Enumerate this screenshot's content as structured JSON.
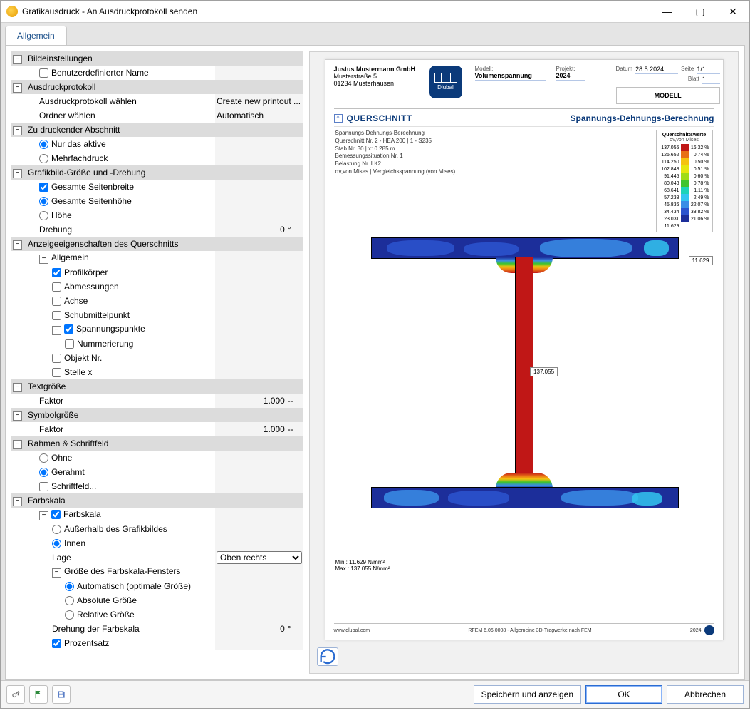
{
  "window": {
    "title": "Grafikausdruck - An Ausdruckprotokoll senden",
    "min": "—",
    "max": "▢",
    "close": "✕"
  },
  "tab": {
    "label": "Allgemein"
  },
  "settings": {
    "bild": {
      "header": "Bildeinstellungen",
      "custom_name_label": "Benutzerdefinierter Name",
      "custom_name_checked": false
    },
    "protokoll": {
      "header": "Ausdruckprotokoll",
      "choose_label": "Ausdruckprotokoll wählen",
      "choose_value": "Create new printout ...",
      "folder_label": "Ordner wählen",
      "folder_value": "Automatisch"
    },
    "section_print": {
      "header": "Zu druckender Abschnitt",
      "only_active": "Nur das aktive",
      "multi": "Mehrfachdruck",
      "selected": "only_active"
    },
    "size_rot": {
      "header": "Grafikbild-Größe und -Drehung",
      "full_width": "Gesamte Seitenbreite",
      "full_height": "Gesamte Seitenhöhe",
      "height": "Höhe",
      "rotation_label": "Drehung",
      "rotation_value": "0",
      "rotation_unit": "°",
      "full_width_checked": true,
      "selected_height": "full_height"
    },
    "qs_props": {
      "header": "Anzeigeeigenschaften des Querschnitts",
      "allgemein": "Allgemein",
      "profil": "Profilkörper",
      "abm": "Abmessungen",
      "achse": "Achse",
      "schub": "Schubmittelpunkt",
      "span": "Spannungspunkte",
      "num": "Nummerierung",
      "obj": "Objekt Nr.",
      "stelle": "Stelle x",
      "profil_checked": true,
      "span_checked": true
    },
    "textsize": {
      "header": "Textgröße",
      "factor_label": "Faktor",
      "factor_value": "1.000",
      "unit": "--"
    },
    "symsize": {
      "header": "Symbolgröße",
      "factor_label": "Faktor",
      "factor_value": "1.000",
      "unit": "--"
    },
    "frame": {
      "header": "Rahmen & Schriftfeld",
      "ohne": "Ohne",
      "gerahmt": "Gerahmt",
      "schriftfeld": "Schriftfeld...",
      "selected": "gerahmt"
    },
    "farbskala": {
      "header": "Farbskala",
      "scale": "Farbskala",
      "outside": "Außerhalb des Grafikbildes",
      "inside": "Innen",
      "position_label": "Lage",
      "position_value": "Oben rechts",
      "win_header": "Größe des Farbskala-Fensters",
      "auto": "Automatisch (optimale Größe)",
      "abs": "Absolute Größe",
      "rel": "Relative Größe",
      "rotation_label": "Drehung der Farbskala",
      "rotation_value": "0",
      "rotation_unit": "°",
      "percent_label": "Prozentsatz",
      "scale_checked": true,
      "inside_selected": true,
      "auto_selected": true,
      "percent_checked": true
    }
  },
  "preview": {
    "company": "Justus Mustermann GmbH",
    "street": "Musterstraße 5",
    "city": "01234 Musterhausen",
    "model_lbl": "Modell:",
    "project_lbl": "Projekt:",
    "date_lbl": "Datum",
    "page_lbl": "Seite",
    "sheet_lbl": "Blatt",
    "date_val": "28.5.2024",
    "page_val": "1/1",
    "sheet_val": "1",
    "model_val": "Volumenspannung",
    "project_val": "2024",
    "model_box": "MODELL",
    "section_title": "QUERSCHNITT",
    "section_right": "Spannungs-Dehnungs-Berechnung",
    "meta": [
      "Spannungs-Dehnungs-Berechnung",
      "Querschnitt Nr. 2 - HEA 200 | 1 - S235",
      "Stab Nr. 30 | x: 0.285 m",
      "Bemessungssituation Nr. 1",
      "Belastung Nr. LK2",
      "σv,von Mises | Vergleichsspannung (von Mises)"
    ],
    "legend_title": "Querschnittswerte",
    "legend_sub": "σv,von Mises",
    "legend": [
      {
        "l": "137.055",
        "c": "#c01716",
        "r": "16.32 %"
      },
      {
        "l": "125.652",
        "c": "#e86f16",
        "r": "0.74 %"
      },
      {
        "l": "114.250",
        "c": "#f5c20f",
        "r": "0.50 %"
      },
      {
        "l": "102.848",
        "c": "#e6e60f",
        "r": "0.51 %"
      },
      {
        "l": "91.445",
        "c": "#9fdc18",
        "r": "0.60 %"
      },
      {
        "l": "80.043",
        "c": "#3ec42e",
        "r": "0.78 %"
      },
      {
        "l": "68.641",
        "c": "#1cd3b8",
        "r": "1.11 %"
      },
      {
        "l": "57.238",
        "c": "#32c6f0",
        "r": "2.49 %"
      },
      {
        "l": "45.836",
        "c": "#3a8de6",
        "r": "22.07 %"
      },
      {
        "l": "34.434",
        "c": "#2b54cf",
        "r": "33.82 %"
      },
      {
        "l": "23.031",
        "c": "#1c2e9a",
        "r": "21.06 %"
      },
      {
        "l": "11.629",
        "c": "",
        "r": ""
      }
    ],
    "marker_top": "11.629",
    "marker_mid": "137.055",
    "min_line": "Min :  11.629 N/mm²",
    "max_line": "Max : 137.055 N/mm²",
    "footer_site": "www.dlubal.com",
    "footer_center": "RFEM 6.06.0008 - Allgemeine 3D-Tragwerke nach FEM",
    "footer_year": "2024"
  },
  "buttons": {
    "save_show": "Speichern und anzeigen",
    "ok": "OK",
    "cancel": "Abbrechen"
  },
  "colors": {
    "accent": "#2b6cd1",
    "section_bg": "#dcdcdc"
  }
}
